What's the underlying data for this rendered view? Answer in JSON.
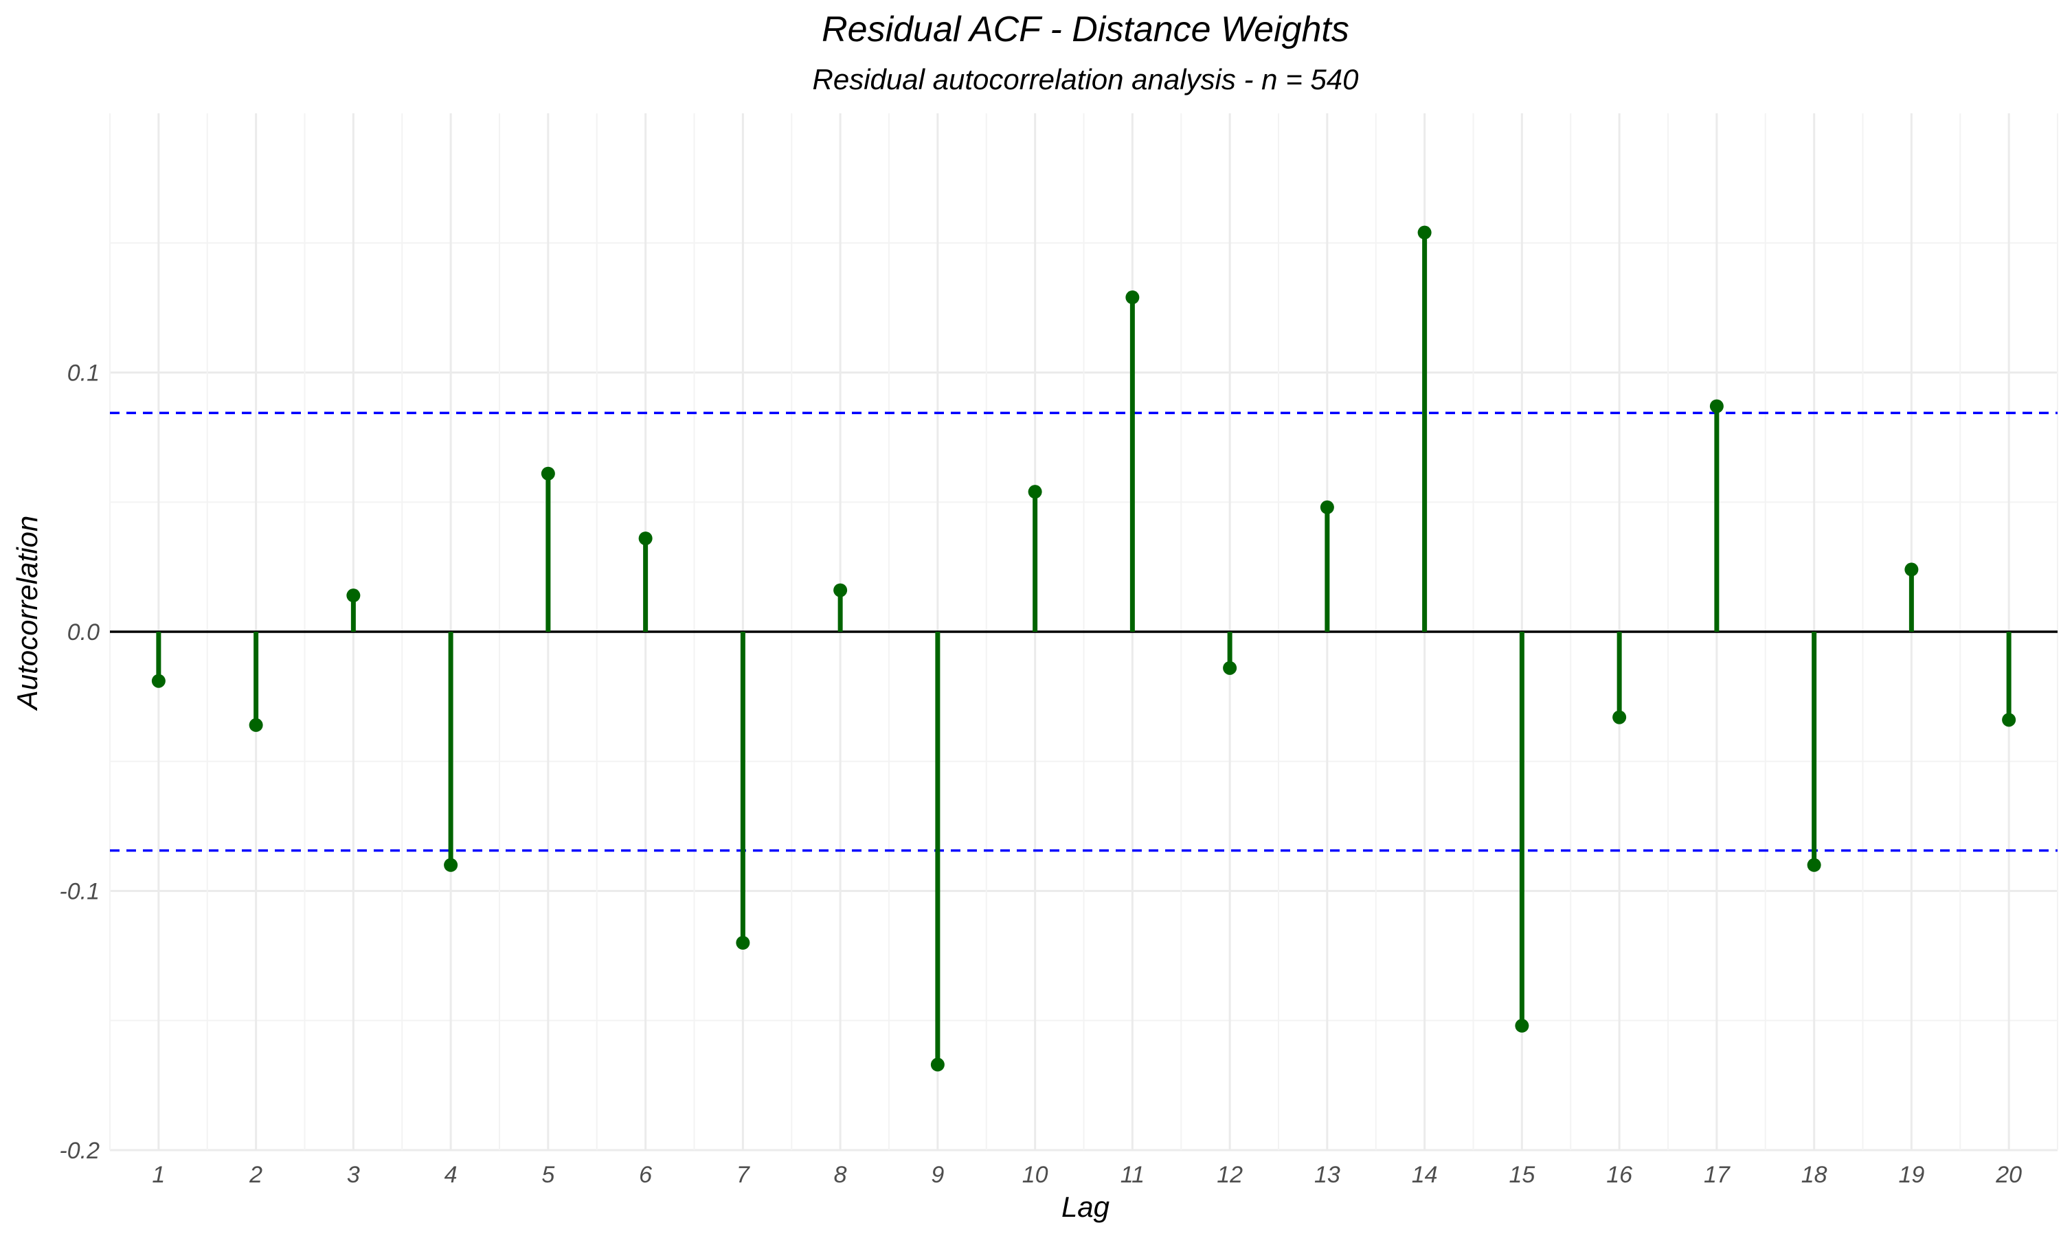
{
  "chart_data": {
    "type": "bar",
    "title": "Residual ACF - Distance Weights",
    "subtitle": "Residual autocorrelation analysis - n = 540",
    "xlabel": "Lag",
    "ylabel": "Autocorrelation",
    "x": [
      1,
      2,
      3,
      4,
      5,
      6,
      7,
      8,
      9,
      10,
      11,
      12,
      13,
      14,
      15,
      16,
      17,
      18,
      19,
      20
    ],
    "values": [
      -0.019,
      -0.036,
      0.014,
      -0.09,
      0.061,
      0.036,
      -0.12,
      0.016,
      -0.167,
      0.054,
      0.129,
      -0.014,
      0.048,
      0.154,
      -0.152,
      -0.033,
      0.087,
      -0.09,
      0.024,
      -0.034
    ],
    "ylim": [
      -0.2,
      0.2
    ],
    "yticks": [
      -0.2,
      -0.1,
      0.0,
      0.1
    ],
    "ytick_labels": [
      "-0.2",
      "-0.1",
      "0.0",
      "0.1"
    ],
    "xlim": [
      0.5,
      20.5
    ],
    "confidence_bound": 0.0844,
    "grid": true,
    "legend": "none",
    "colors": {
      "stem": "#006400",
      "point": "#006400",
      "confidence_line": "#0000ff",
      "zero_line": "#000000",
      "grid": "#ebebeb"
    }
  }
}
